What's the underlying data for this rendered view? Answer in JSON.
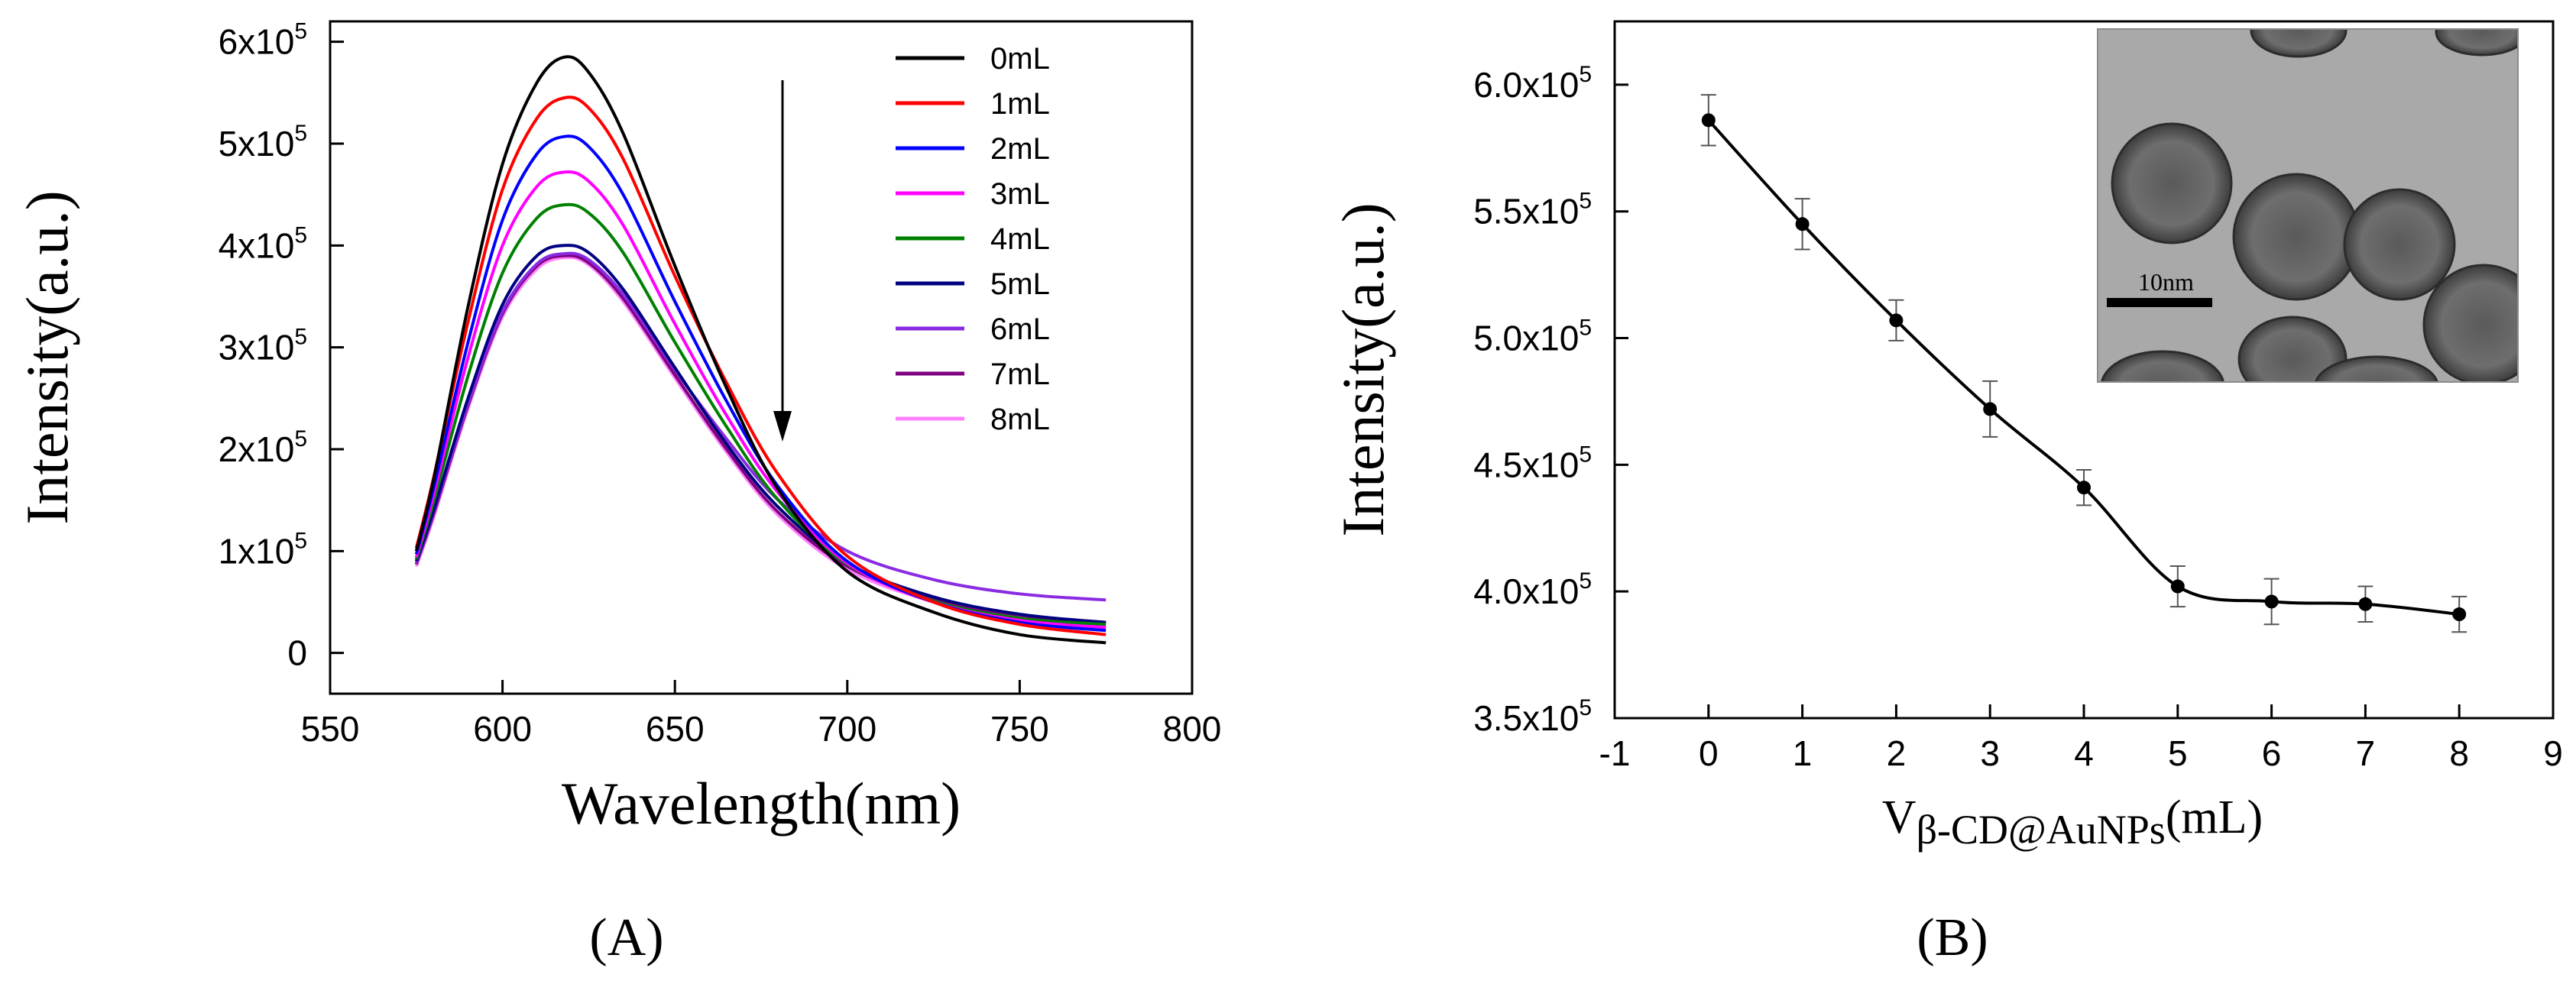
{
  "chart_data": [
    {
      "type": "line",
      "panel_label": "(A)",
      "xlabel": "Wavelength(nm)",
      "ylabel": "Intensity(a.u.)",
      "xlim": [
        550,
        800
      ],
      "ylim": [
        -40000,
        620000
      ],
      "x_ticks": [
        550,
        600,
        650,
        700,
        750,
        800
      ],
      "y_ticks": [
        {
          "value": 0,
          "mant": "0",
          "exp": ""
        },
        {
          "value": 100000,
          "mant": "1x10",
          "exp": "5"
        },
        {
          "value": 200000,
          "mant": "2x10",
          "exp": "5"
        },
        {
          "value": 300000,
          "mant": "3x10",
          "exp": "5"
        },
        {
          "value": 400000,
          "mant": "4x10",
          "exp": "5"
        },
        {
          "value": 500000,
          "mant": "5x10",
          "exp": "5"
        },
        {
          "value": 600000,
          "mant": "6x10",
          "exp": "5"
        }
      ],
      "x": [
        575,
        580,
        590,
        600,
        610,
        618,
        625,
        635,
        650,
        665,
        680,
        700,
        725,
        750,
        775
      ],
      "series": [
        {
          "name": "0mL",
          "color": "#000000",
          "values": [
            100000,
            170000,
            340000,
            480000,
            560000,
            585000,
            570000,
            510000,
            380000,
            260000,
            160000,
            80000,
            40000,
            18000,
            10000
          ]
        },
        {
          "name": "1mL",
          "color": "#ff0000",
          "values": [
            103000,
            172000,
            325000,
            455000,
            525000,
            545000,
            535000,
            485000,
            370000,
            265000,
            175000,
            95000,
            50000,
            28000,
            18000
          ]
        },
        {
          "name": "2mL",
          "color": "#0000ff",
          "values": [
            97000,
            162000,
            305000,
            425000,
            490000,
            507000,
            497000,
            450000,
            345000,
            247000,
            163000,
            90000,
            50000,
            30000,
            22000
          ]
        },
        {
          "name": "3mL",
          "color": "#ff00ff",
          "values": [
            94000,
            155000,
            290000,
            400000,
            458000,
            472000,
            463000,
            420000,
            323000,
            233000,
            157000,
            88000,
            50000,
            32000,
            25000
          ]
        },
        {
          "name": "4mL",
          "color": "#008000",
          "values": [
            92000,
            148000,
            272000,
            373000,
            427000,
            440000,
            432000,
            393000,
            305000,
            222000,
            150000,
            87000,
            51000,
            34000,
            28000
          ]
        },
        {
          "name": "5mL",
          "color": "#000080",
          "values": [
            90000,
            140000,
            250000,
            342000,
            390000,
            400000,
            393000,
            357000,
            280000,
            205000,
            143000,
            88000,
            55000,
            38000,
            30000
          ]
        },
        {
          "name": "6mL",
          "color": "#8a2be2",
          "values": [
            88000,
            138000,
            245000,
            335000,
            382000,
            392000,
            386000,
            352000,
            278000,
            210000,
            150000,
            100000,
            72000,
            58000,
            52000
          ]
        },
        {
          "name": "7mL",
          "color": "#800080",
          "values": [
            87000,
            136000,
            243000,
            333000,
            380000,
            390000,
            383000,
            348000,
            273000,
            200000,
            138000,
            85000,
            53000,
            37000,
            29000
          ]
        },
        {
          "name": "8mL",
          "color": "#ff80ff",
          "values": [
            85000,
            133000,
            240000,
            330000,
            377000,
            388000,
            381000,
            345000,
            270000,
            197000,
            135000,
            82000,
            50000,
            33000,
            26000
          ]
        }
      ]
    },
    {
      "type": "scatter",
      "panel_label": "(B)",
      "xlabel_main": "V",
      "xlabel_sub": "β-CD@AuNPs",
      "xlabel_unit": "(mL)",
      "ylabel": "Intensity(a.u.)",
      "xlim": [
        -1,
        9
      ],
      "ylim": [
        350000,
        625000
      ],
      "x_ticks": [
        -1,
        0,
        1,
        2,
        3,
        4,
        5,
        6,
        7,
        8,
        9
      ],
      "y_ticks": [
        {
          "value": 350000,
          "mant": "3.5x10",
          "exp": "5"
        },
        {
          "value": 400000,
          "mant": "4.0x10",
          "exp": "5"
        },
        {
          "value": 450000,
          "mant": "4.5x10",
          "exp": "5"
        },
        {
          "value": 500000,
          "mant": "5.0x10",
          "exp": "5"
        },
        {
          "value": 550000,
          "mant": "5.5x10",
          "exp": "5"
        },
        {
          "value": 600000,
          "mant": "6.0x10",
          "exp": "5"
        }
      ],
      "x": [
        0,
        1,
        2,
        3,
        4,
        5,
        6,
        7,
        8
      ],
      "y": [
        586000,
        545000,
        507000,
        472000,
        441000,
        402000,
        396000,
        395000,
        391000
      ],
      "err": [
        10000,
        10000,
        8000,
        11000,
        7000,
        8000,
        9000,
        7000,
        7000
      ],
      "inset": {
        "scale_bar_label": "10nm"
      }
    }
  ]
}
